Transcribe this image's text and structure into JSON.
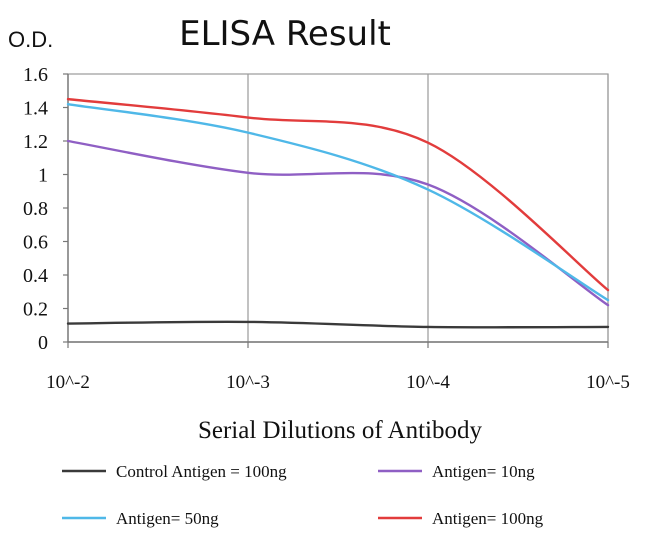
{
  "chart_data": {
    "type": "line",
    "title": "ELISA Result",
    "ylabel": "O.D.",
    "xlabel": "Serial Dilutions of Antibody",
    "categories": [
      "10^-2",
      "10^-3",
      "10^-4",
      "10^-5"
    ],
    "ylim": [
      0,
      1.6
    ],
    "yticks": [
      "0",
      "0.2",
      "0.4",
      "0.6",
      "0.8",
      "1",
      "1.2",
      "1.4",
      "1.6"
    ],
    "grid": "vertical",
    "legend_position": "bottom",
    "series": [
      {
        "name": "Control Antigen = 100ng",
        "color": "#3a3a3a",
        "values": [
          0.11,
          0.12,
          0.09,
          0.09
        ]
      },
      {
        "name": "Antigen= 10ng",
        "color": "#8f5fc4",
        "values": [
          1.2,
          1.01,
          0.94,
          0.22
        ]
      },
      {
        "name": "Antigen= 50ng",
        "color": "#4fb8e8",
        "values": [
          1.42,
          1.25,
          0.91,
          0.25
        ]
      },
      {
        "name": "Antigen= 100ng",
        "color": "#e23c3c",
        "values": [
          1.45,
          1.34,
          1.19,
          0.31
        ]
      }
    ]
  }
}
